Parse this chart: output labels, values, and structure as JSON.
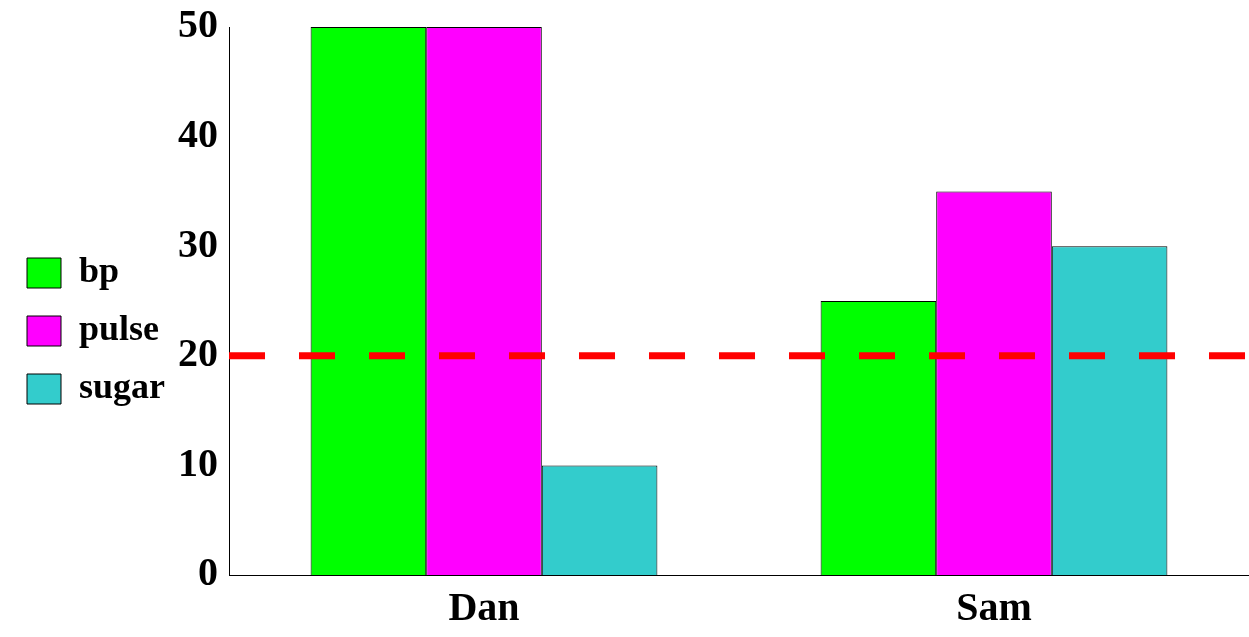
{
  "chart_data": {
    "type": "bar",
    "categories": [
      "Dan",
      "Sam"
    ],
    "series": [
      {
        "name": "bp",
        "color": "#00ff00",
        "values": [
          50,
          25
        ]
      },
      {
        "name": "pulse",
        "color": "#ff00ff",
        "values": [
          50,
          35
        ]
      },
      {
        "name": "sugar",
        "color": "#33cccc",
        "values": [
          10,
          30
        ]
      }
    ],
    "ylim": [
      0,
      50
    ],
    "yticks": [
      0,
      10,
      20,
      30,
      40,
      50
    ],
    "grid": false,
    "legend": "left",
    "ref_lines": [
      {
        "axis": "y",
        "value": 20,
        "color": "#ff0000",
        "line_style": "dashed"
      }
    ]
  }
}
